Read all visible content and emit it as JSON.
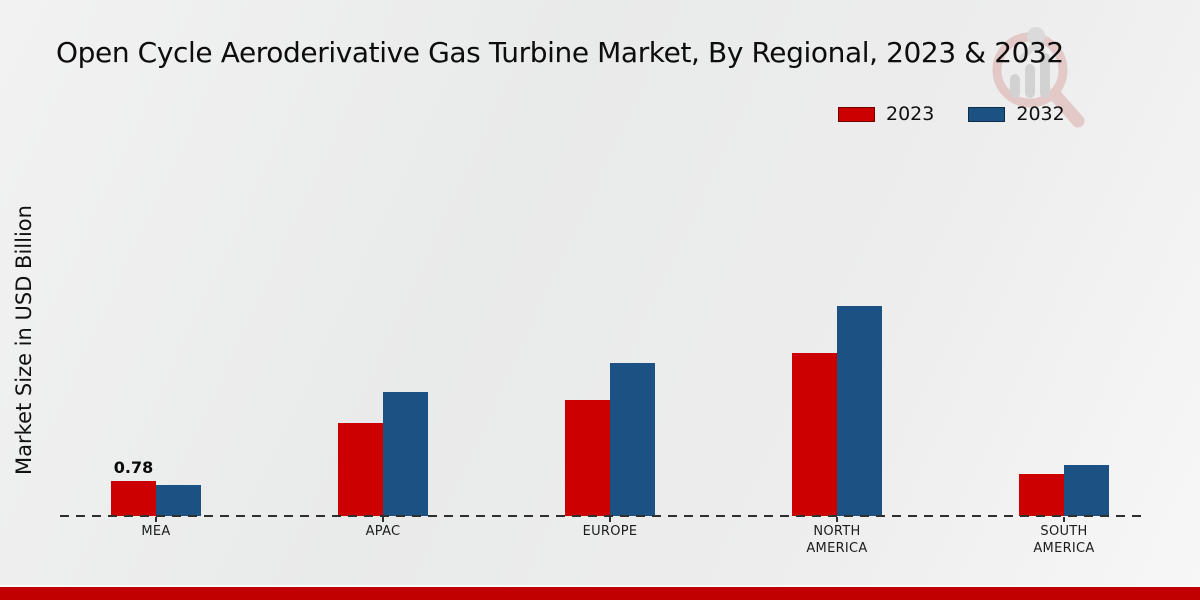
{
  "title": "Open Cycle Aeroderivative Gas Turbine Market, By Regional, 2023 & 2032",
  "ylabel": "Market Size in USD Billion",
  "legend": [
    {
      "label": "2023",
      "color": "#cc0001"
    },
    {
      "label": "2032",
      "color": "#1b5283"
    }
  ],
  "colors": {
    "accent_red": "#cc0001",
    "accent_blue": "#1b5283",
    "axis": "#2f2f2f",
    "footer_bar": "#c00001"
  },
  "watermark_icon": "market-research-magnifier-logo",
  "chart_data": {
    "type": "bar",
    "title": "Open Cycle Aeroderivative Gas Turbine Market, By Regional, 2023 & 2032",
    "xlabel": "",
    "ylabel": "Market Size in USD Billion",
    "categories": [
      "MEA",
      "APAC",
      "EUROPE",
      "NORTH AMERICA",
      "SOUTH AMERICA"
    ],
    "series": [
      {
        "name": "2023",
        "color": "#cc0001",
        "values": [
          0.78,
          2.07,
          2.58,
          3.63,
          0.94
        ]
      },
      {
        "name": "2032",
        "color": "#1b5283",
        "values": [
          0.69,
          2.76,
          3.41,
          4.66,
          1.14
        ]
      }
    ],
    "ylim": [
      0,
      5
    ],
    "grid": false,
    "y_axis_ticks_visible": false,
    "legend_position": "top-right",
    "baseline_style": "dashed",
    "annotations": [
      {
        "category": "MEA",
        "series": "2023",
        "text": "0.78"
      }
    ]
  }
}
